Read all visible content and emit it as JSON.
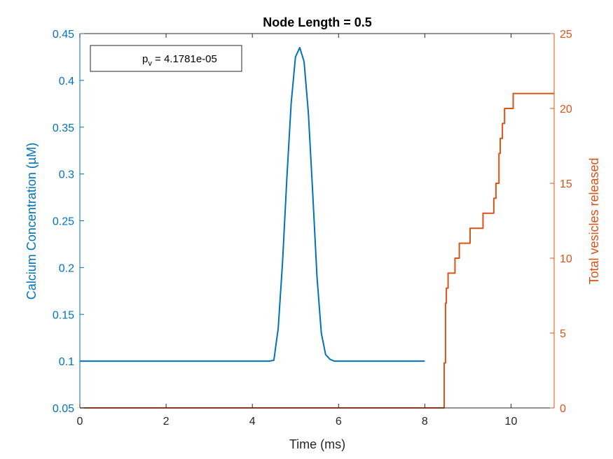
{
  "chart_data": {
    "type": "line",
    "title": "Node Length = 0.5",
    "xlabel": "Time (ms)",
    "ylabel_left": "Calcium Concentration (µM)",
    "ylabel_right": "Total vesicles released",
    "xlim": [
      0,
      11
    ],
    "ylim_left": [
      0.05,
      0.45
    ],
    "ylim_right": [
      0,
      25
    ],
    "x_ticks": [
      "0",
      "2",
      "4",
      "6",
      "8",
      "10"
    ],
    "y_left_ticks": [
      "0.05",
      "0.1",
      "0.15",
      "0.2",
      "0.25",
      "0.3",
      "0.35",
      "0.4",
      "0.45"
    ],
    "y_right_ticks": [
      "0",
      "5",
      "10",
      "15",
      "20",
      "25"
    ],
    "grid": false,
    "legend": {
      "position": "top-left",
      "label_main": "p",
      "label_sub": "v",
      "label_value": " = 4.1781e-05"
    },
    "colors": {
      "left": "#0072BD",
      "right": "#D95319",
      "axis": "#262626"
    },
    "series": [
      {
        "axis": "left",
        "x": [
          0,
          4.4,
          4.5,
          4.6,
          4.7,
          4.8,
          4.9,
          5.0,
          5.1,
          5.2,
          5.3,
          5.4,
          5.5,
          5.6,
          5.7,
          5.8,
          5.9,
          6.0,
          8.0
        ],
        "y": [
          0.1,
          0.1,
          0.101,
          0.135,
          0.205,
          0.295,
          0.375,
          0.425,
          0.435,
          0.42,
          0.365,
          0.28,
          0.19,
          0.13,
          0.107,
          0.102,
          0.1,
          0.1,
          0.1
        ]
      },
      {
        "axis": "right",
        "step": true,
        "x": [
          0,
          8.45,
          8.48,
          8.5,
          8.52,
          8.54,
          8.57,
          8.7,
          8.8,
          9.05,
          9.35,
          9.6,
          9.65,
          9.72,
          9.75,
          9.8,
          9.85,
          9.92,
          10.05,
          11.0
        ],
        "y": [
          0,
          3,
          7,
          8,
          8,
          9,
          9,
          10,
          11,
          12,
          13,
          14,
          15,
          17,
          18,
          19,
          20,
          20,
          21,
          21
        ]
      }
    ]
  }
}
